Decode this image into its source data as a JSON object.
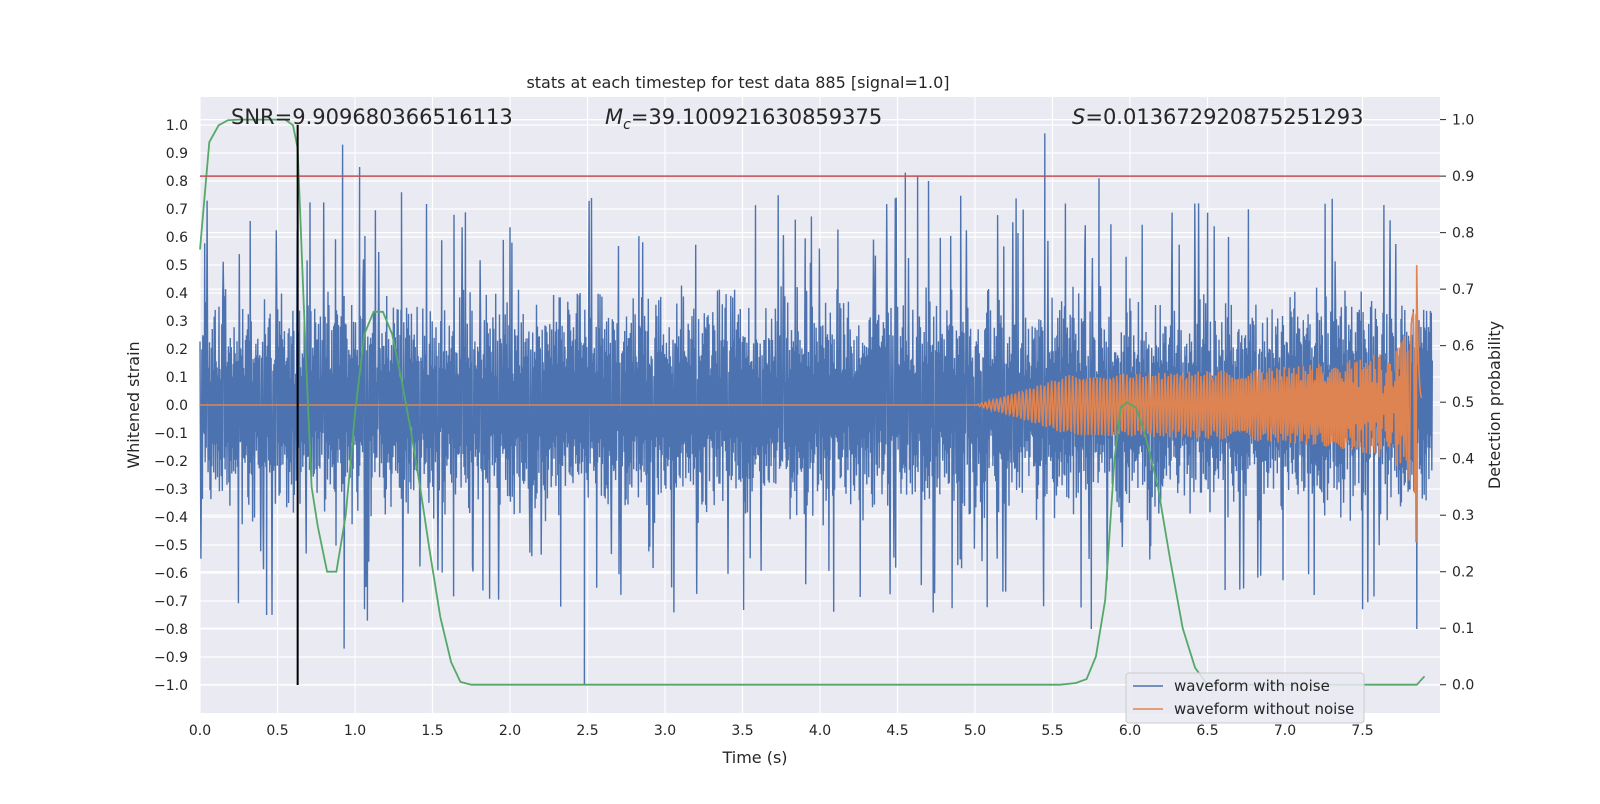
{
  "chart_data": {
    "type": "line",
    "title": "stats at each timestep for test data 885 [signal=1.0]",
    "xlabel": "Time (s)",
    "ylabel": "Whitened strain",
    "ylabel_right": "Detection probability",
    "xlim": [
      0.0,
      8.0
    ],
    "ylim": [
      -1.1,
      1.1
    ],
    "ylim_right": [
      -0.05,
      1.04
    ],
    "x_ticks": [
      "0.0",
      "0.5",
      "1.0",
      "1.5",
      "2.0",
      "2.5",
      "3.0",
      "3.5",
      "4.0",
      "4.5",
      "5.0",
      "5.5",
      "6.0",
      "6.5",
      "7.0",
      "7.5"
    ],
    "y_ticks": [
      "1.0",
      "0.9",
      "0.8",
      "0.7",
      "0.6",
      "0.5",
      "0.4",
      "0.3",
      "0.2",
      "0.1",
      "0.0",
      "-0.1",
      "-0.2",
      "-0.3",
      "-0.4",
      "-0.5",
      "-0.6",
      "-0.7",
      "-0.8",
      "-0.9",
      "-1.0"
    ],
    "y_ticks_right": [
      "1.0",
      "0.9",
      "0.8",
      "0.7",
      "0.6",
      "0.5",
      "0.4",
      "0.3",
      "0.2",
      "0.1",
      "0.0"
    ],
    "grid": true,
    "background": "#eaeaf2",
    "annotations": {
      "snr": "SNR=9.909680366516113",
      "mc_symbol": "M",
      "mc_sub": "c",
      "mc_value": "=39.100921630859375",
      "s_symbol": "S",
      "s_value": "=0.013672920875251293"
    },
    "threshold": {
      "value": 0.9,
      "axis": "right",
      "color": "#c44e52"
    },
    "marker_line": {
      "x": 0.63,
      "ymin": -1.0,
      "ymax": 1.0,
      "color": "#000000"
    },
    "legend": {
      "position": "lower-right",
      "entries": [
        {
          "label": "waveform with noise",
          "color": "#4c72b0"
        },
        {
          "label": "waveform without noise",
          "color": "#dd8452"
        }
      ]
    },
    "series": [
      {
        "name": "waveform with noise",
        "color": "#4c72b0",
        "axis": "left",
        "description_envelope": {
          "typical_amplitude": 0.45,
          "peaks": [
            [
              0.92,
              0.93
            ],
            [
              1.03,
              0.85
            ],
            [
              1.3,
              0.76
            ],
            [
              4.55,
              0.83
            ],
            [
              4.63,
              0.82
            ],
            [
              4.7,
              0.8
            ],
            [
              5.45,
              0.97
            ],
            [
              5.8,
              0.81
            ]
          ],
          "troughs": [
            [
              0.43,
              -0.75
            ],
            [
              0.93,
              -0.87
            ],
            [
              1.08,
              -0.77
            ],
            [
              2.48,
              -1.0
            ],
            [
              5.75,
              -0.8
            ],
            [
              7.85,
              -0.8
            ]
          ]
        }
      },
      {
        "name": "waveform without noise",
        "color": "#dd8452",
        "axis": "left",
        "chirp": {
          "start": 5.0,
          "merger": 7.85,
          "peak_amplitude": 0.52,
          "end": 7.88
        }
      },
      {
        "color": "#55a868",
        "axis": "right",
        "x": [
          0.0,
          0.06,
          0.12,
          0.18,
          0.25,
          0.35,
          0.45,
          0.55,
          0.6,
          0.63,
          0.68,
          0.72,
          0.76,
          0.82,
          0.88,
          0.94,
          1.0,
          1.06,
          1.12,
          1.18,
          1.24,
          1.3,
          1.36,
          1.42,
          1.48,
          1.55,
          1.62,
          1.68,
          1.75,
          2.0,
          3.0,
          4.0,
          5.0,
          5.55,
          5.65,
          5.72,
          5.78,
          5.84,
          5.9,
          5.94,
          5.98,
          6.04,
          6.1,
          6.18,
          6.26,
          6.34,
          6.42,
          6.5,
          7.0,
          7.5,
          7.85,
          7.9
        ],
        "y": [
          0.77,
          0.96,
          0.99,
          0.999,
          1.0,
          1.0,
          1.0,
          1.0,
          0.99,
          0.95,
          0.6,
          0.35,
          0.28,
          0.2,
          0.2,
          0.3,
          0.48,
          0.62,
          0.66,
          0.66,
          0.62,
          0.54,
          0.45,
          0.35,
          0.24,
          0.12,
          0.04,
          0.005,
          0.0,
          0.0,
          0.0,
          0.0,
          0.0,
          0.0,
          0.003,
          0.01,
          0.05,
          0.15,
          0.4,
          0.49,
          0.5,
          0.49,
          0.44,
          0.35,
          0.22,
          0.1,
          0.03,
          0.0,
          0.0,
          0.0,
          0.0,
          0.015
        ]
      }
    ]
  }
}
